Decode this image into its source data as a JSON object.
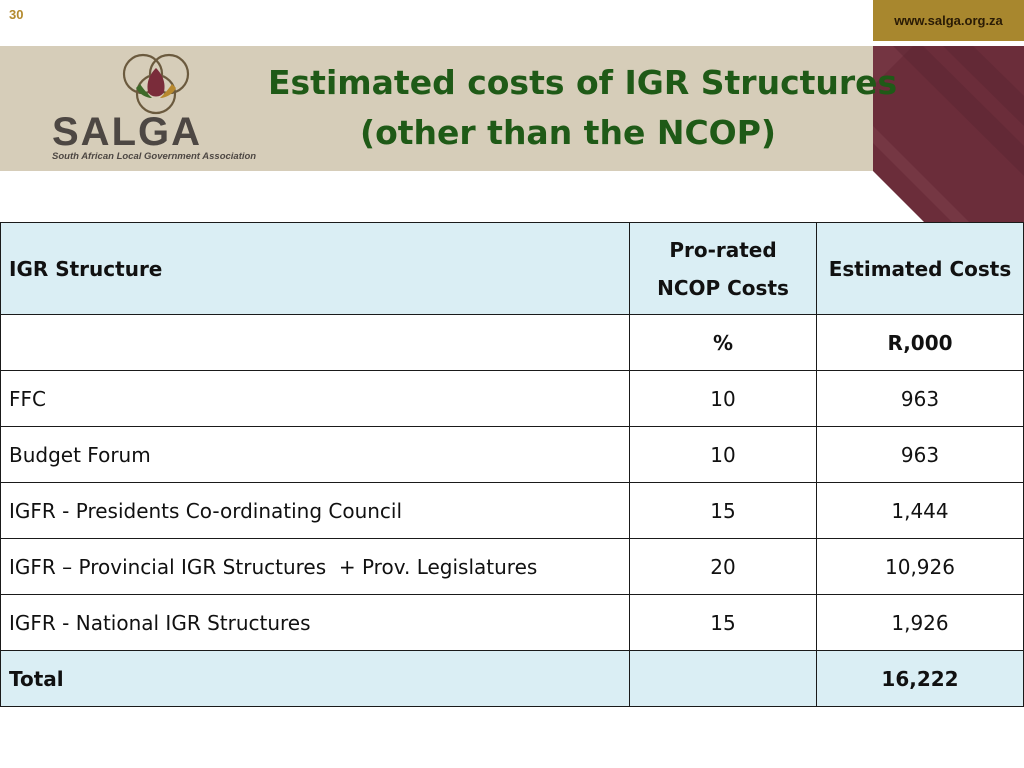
{
  "slide": {
    "page_number": "30",
    "url": "www.salga.org.za",
    "title_line1": "Estimated costs of IGR Structures",
    "title_line2": "(other than the NCOP)"
  },
  "logo": {
    "wordmark": "SALGA",
    "subtitle": "South African Local Government Association"
  },
  "table": {
    "headers": [
      "IGR Structure",
      "Pro-rated NCOP Costs",
      "Estimated Costs"
    ],
    "units": [
      "",
      "%",
      "R,000"
    ],
    "rows": [
      {
        "structure": "FFC",
        "pct": "10",
        "cost": "963"
      },
      {
        "structure": "Budget Forum",
        "pct": "10",
        "cost": "963"
      },
      {
        "structure": "IGFR - Presidents Co-ordinating Council",
        "pct": "15",
        "cost": "1,444"
      },
      {
        "structure": "IGFR – Provincial IGR Structures  + Prov. Legislatures",
        "pct": "20",
        "cost": "10,926"
      },
      {
        "structure": "IGFR - National IGR Structures",
        "pct": "15",
        "cost": "1,926"
      }
    ],
    "total": {
      "label": "Total",
      "pct": "",
      "cost": "16,222"
    }
  },
  "colors": {
    "title_green": "#1f5a17",
    "band_beige": "#d6cdb9",
    "accent_maroon": "#6e2f3c",
    "header_fill": "#daeef4",
    "url_gold": "#a8872e"
  }
}
